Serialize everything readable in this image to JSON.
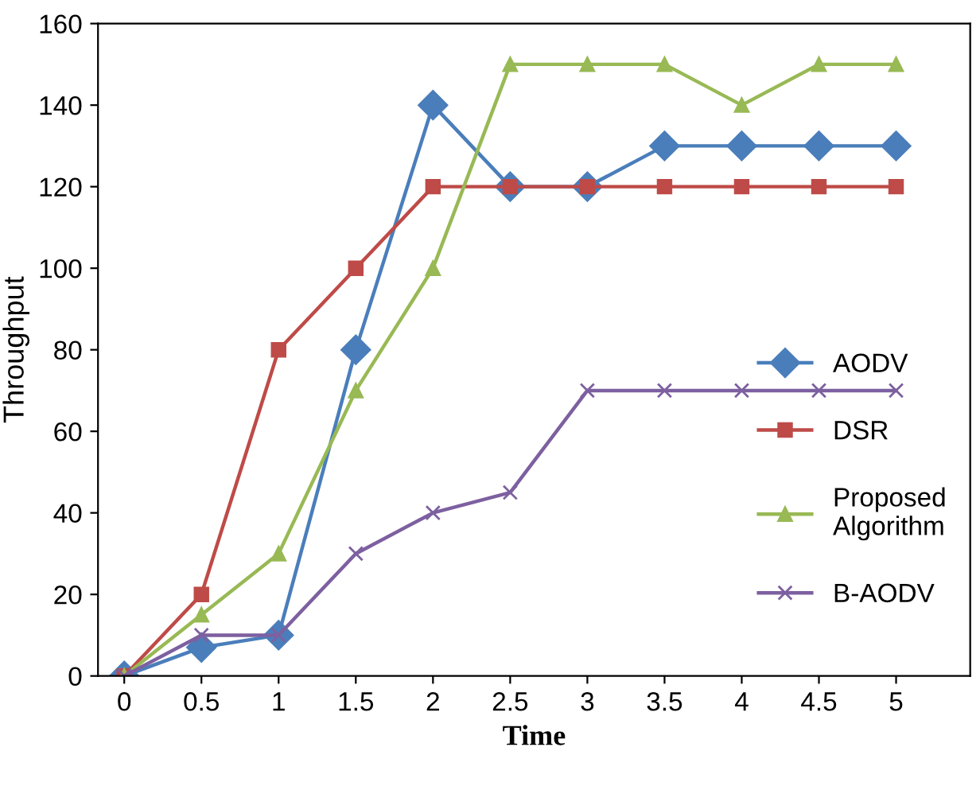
{
  "chart_data": {
    "type": "line",
    "xlabel": "Time",
    "ylabel": "Throughput",
    "x": [
      0,
      0.5,
      1,
      1.5,
      2,
      2.5,
      3,
      3.5,
      4,
      4.5,
      5
    ],
    "series": [
      {
        "name": "AODV",
        "color": "#4a7ebb",
        "marker": "diamond",
        "values": [
          0,
          7,
          10,
          80,
          140,
          120,
          120,
          130,
          130,
          130,
          130
        ]
      },
      {
        "name": "DSR",
        "color": "#be4b48",
        "marker": "square",
        "values": [
          0,
          20,
          80,
          100,
          120,
          120,
          120,
          120,
          120,
          120,
          120
        ]
      },
      {
        "name": "Proposed\nAlgorithm",
        "color": "#98b954",
        "marker": "triangle",
        "values": [
          0,
          15,
          30,
          70,
          100,
          150,
          150,
          150,
          140,
          150,
          150
        ]
      },
      {
        "name": "B-AODV",
        "color": "#7d60a0",
        "marker": "cross",
        "values": [
          0,
          10,
          10,
          30,
          40,
          45,
          70,
          70,
          70,
          70,
          70
        ]
      }
    ],
    "xlim": [
      -0.17,
      5.48
    ],
    "xticks": [
      0,
      0.5,
      1,
      1.5,
      2,
      2.5,
      3,
      3.5,
      4,
      4.5,
      5
    ],
    "ylim": [
      0,
      160
    ],
    "yticks": [
      0,
      20,
      40,
      60,
      80,
      100,
      120,
      140,
      160
    ],
    "grid": false,
    "legend": "right"
  }
}
